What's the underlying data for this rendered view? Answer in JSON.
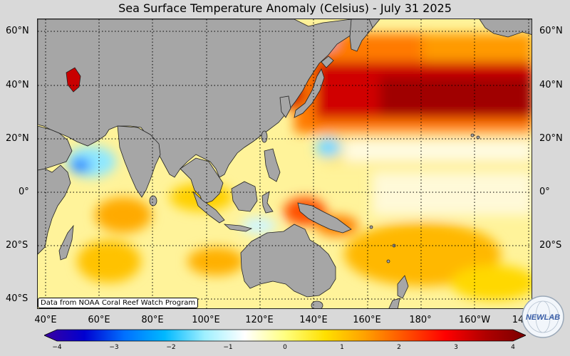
{
  "title": "Sea Surface Temperature Anomaly (Celsius) - July 31 2025",
  "credit": "Data from NOAA Coral Reef Watch Program",
  "latitude_labels": [
    "60°N",
    "40°N",
    "20°N",
    "0°",
    "20°S",
    "40°S"
  ],
  "longitude_labels": [
    "40°E",
    "60°E",
    "80°E",
    "100°E",
    "120°E",
    "140°E",
    "160°E",
    "180°",
    "160°W",
    "14"
  ],
  "colorbar": {
    "ticks": [
      "−4",
      "−3",
      "−2",
      "−1",
      "0",
      "1",
      "2",
      "3",
      "4"
    ],
    "min": -4,
    "max": 4,
    "colors": [
      "#3b00a0",
      "#0000d0",
      "#0070ff",
      "#00b8ff",
      "#9ff0ff",
      "#ffffff",
      "#ffff80",
      "#ffe000",
      "#ffa000",
      "#ff5000",
      "#ff0000",
      "#b00000",
      "#7a0000"
    ]
  },
  "colors": {
    "land": "#a6a6a6",
    "page_background": "#d9d9d9"
  },
  "logo": {
    "text": "NEWLAB",
    "icon": "globe-logo-icon"
  }
}
